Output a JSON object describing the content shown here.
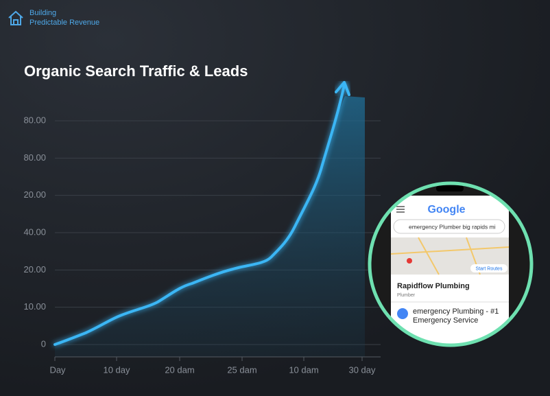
{
  "brand": {
    "line1": "Building",
    "line2": "Predictable Revenue"
  },
  "title": "Organic Search Traffic & Leads",
  "y_axis_labels": [
    "0",
    "10.00",
    "20.00",
    "40.00",
    "20.00",
    "80.00",
    "80.00"
  ],
  "x_axis_labels": [
    "Day",
    "10 day",
    "20 dam",
    "25 dam",
    "10 dam",
    "30 day"
  ],
  "phone": {
    "logo": "Google",
    "search": "emergency Plumber big rapids mi",
    "map_button": "Start Routes",
    "result1": {
      "name": "Rapidflow Plumbing",
      "meta": "Plumber"
    },
    "result2": {
      "title": "emergency Plumbing - #1",
      "subtitle": "Emergency Service"
    }
  }
}
